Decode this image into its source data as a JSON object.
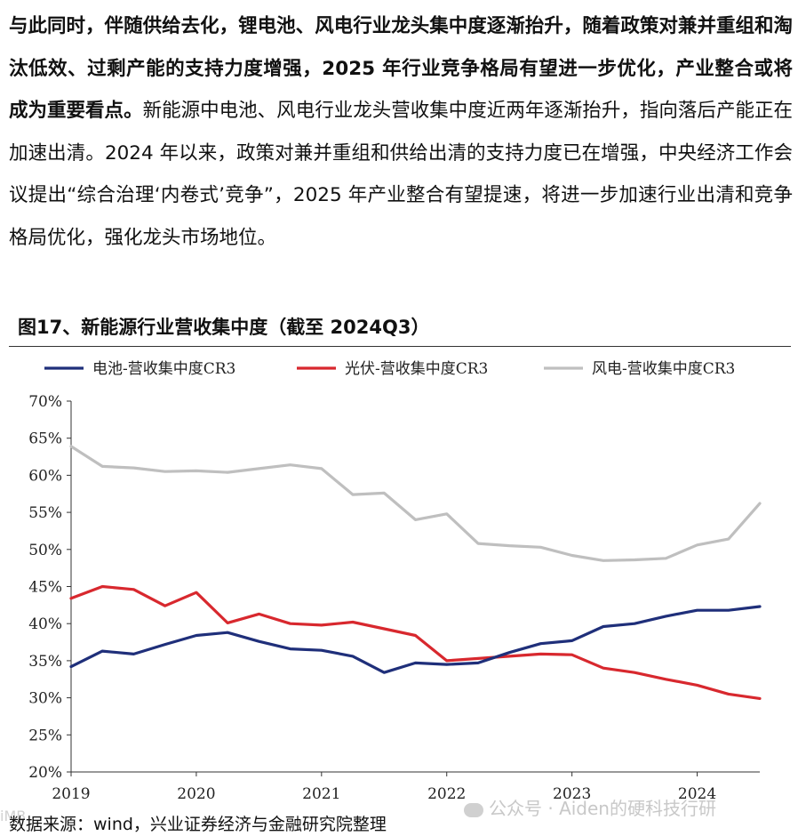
{
  "paragraph": {
    "bold_part1": "与此同时，伴随供给去化，锂电池、风电行业龙头集中度逐渐抬升，随着政策对兼并重组和淘汰低效、过剩产能的支持力度增强，",
    "bold_part2": "2025",
    "bold_part3": " 年行业竞争格局有望进一步优化，产业整合或将成为重要看点。",
    "normal_part1": "新能源中电池、风电行业龙头营收集中度近两年逐渐抬升，指向落后产能正在加速出清。",
    "normal_part2": "2024",
    "normal_part3": " 年以来，政策对兼并重组和供给出清的支持力度已在增强，中央经济工作会议提出“综合治理‘内卷式’竞争”，",
    "normal_part4": "2025",
    "normal_part5": " 年产业整合有望提速，将进一步加速行业出清和竞争格局优化，强化龙头市场地位。"
  },
  "figure": {
    "title": "图17、新能源行业营收集中度（截至 2024Q3）",
    "source": "数据来源：wind，兴业证券经济与金融研究院整理",
    "watermark": "公众号 · Aiden的硬科技行研",
    "corner_watermark": "iMB"
  },
  "chart_data": {
    "type": "line",
    "title": "",
    "x_labels": [
      "2019",
      "2020",
      "2021",
      "2022",
      "2023",
      "2024"
    ],
    "x_quarters": [
      "2019Q1",
      "2019Q2",
      "2019Q3",
      "2019Q4",
      "2020Q1",
      "2020Q2",
      "2020Q3",
      "2020Q4",
      "2021Q1",
      "2021Q2",
      "2021Q3",
      "2021Q4",
      "2022Q1",
      "2022Q2",
      "2022Q3",
      "2022Q4",
      "2023Q1",
      "2023Q2",
      "2023Q3",
      "2023Q4",
      "2024Q1",
      "2024Q2",
      "2024Q3"
    ],
    "y_ticks": [
      "20%",
      "25%",
      "30%",
      "35%",
      "40%",
      "45%",
      "50%",
      "55%",
      "60%",
      "65%",
      "70%"
    ],
    "ylim": [
      20,
      70
    ],
    "series": [
      {
        "name": "电池-营收集中度CR3",
        "color": "#1f2f7a",
        "values": [
          34.2,
          36.3,
          35.9,
          37.2,
          38.4,
          38.8,
          37.6,
          36.6,
          36.4,
          35.6,
          33.4,
          34.7,
          34.5,
          34.7,
          36.1,
          37.3,
          37.7,
          39.6,
          40.0,
          41.0,
          41.8,
          41.8,
          42.3
        ]
      },
      {
        "name": "光伏-营收集中度CR3",
        "color": "#d8282e",
        "values": [
          43.4,
          45.0,
          44.6,
          42.4,
          44.2,
          40.1,
          41.3,
          40.0,
          39.8,
          40.2,
          39.3,
          38.4,
          35.0,
          35.3,
          35.6,
          35.9,
          35.8,
          34.0,
          33.4,
          32.5,
          31.7,
          30.5,
          29.9
        ]
      },
      {
        "name": "风电-营收集中度CR3",
        "color": "#bfbfbf",
        "values": [
          63.9,
          61.2,
          61.0,
          60.5,
          60.6,
          60.4,
          60.9,
          61.4,
          60.9,
          57.4,
          57.6,
          54.0,
          54.8,
          50.8,
          50.5,
          50.3,
          49.2,
          48.5,
          48.6,
          48.8,
          50.6,
          51.4,
          56.2
        ]
      }
    ]
  }
}
